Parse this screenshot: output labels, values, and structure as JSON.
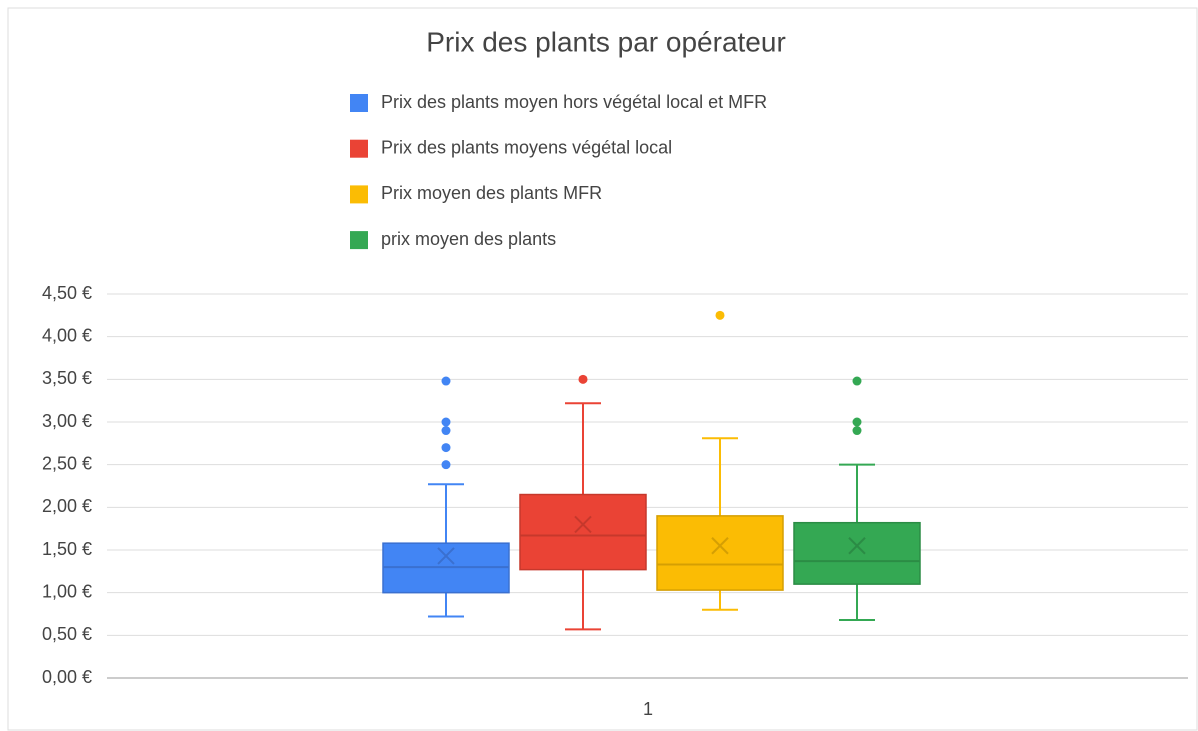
{
  "chart_data": {
    "type": "box",
    "title": "Prix des plants par opérateur",
    "categories": [
      "1"
    ],
    "ylim": [
      0,
      4.5
    ],
    "yticks": [
      {
        "value": 0,
        "label": "0,00 €"
      },
      {
        "value": 0.5,
        "label": "0,50 €"
      },
      {
        "value": 1,
        "label": "1,00 €"
      },
      {
        "value": 1.5,
        "label": "1,50 €"
      },
      {
        "value": 2,
        "label": "2,00 €"
      },
      {
        "value": 2.5,
        "label": "2,50 €"
      },
      {
        "value": 3,
        "label": "3,00 €"
      },
      {
        "value": 3.5,
        "label": "3,50 €"
      },
      {
        "value": 4,
        "label": "4,00 €"
      },
      {
        "value": 4.5,
        "label": "4,50 €"
      }
    ],
    "grid": true,
    "legend": "top",
    "series": [
      {
        "name": "Prix des plants moyen hors végétal local et MFR",
        "color": "#4285f4",
        "edge": "#3a70d0",
        "min": 0.72,
        "q1": 1.0,
        "median": 1.3,
        "q3": 1.58,
        "max": 2.27,
        "mean": 1.43,
        "outliers": [
          3.48,
          3.0,
          2.9,
          2.7,
          2.5
        ]
      },
      {
        "name": "Prix des plants moyens végétal local",
        "color": "#ea4335",
        "edge": "#c6382c",
        "min": 0.57,
        "q1": 1.27,
        "median": 1.67,
        "q3": 2.15,
        "max": 3.22,
        "mean": 1.8,
        "outliers": [
          3.5
        ]
      },
      {
        "name": "Prix moyen des plants MFR",
        "color": "#fbbc04",
        "edge": "#d59f03",
        "min": 0.8,
        "q1": 1.03,
        "median": 1.33,
        "q3": 1.9,
        "max": 2.81,
        "mean": 1.55,
        "outliers": [
          4.25
        ]
      },
      {
        "name": "prix moyen des plants",
        "color": "#34a853",
        "edge": "#2b8c45",
        "min": 0.68,
        "q1": 1.1,
        "median": 1.37,
        "q3": 1.82,
        "max": 2.5,
        "mean": 1.55,
        "outliers": [
          3.48,
          3.0,
          2.9
        ]
      }
    ]
  }
}
